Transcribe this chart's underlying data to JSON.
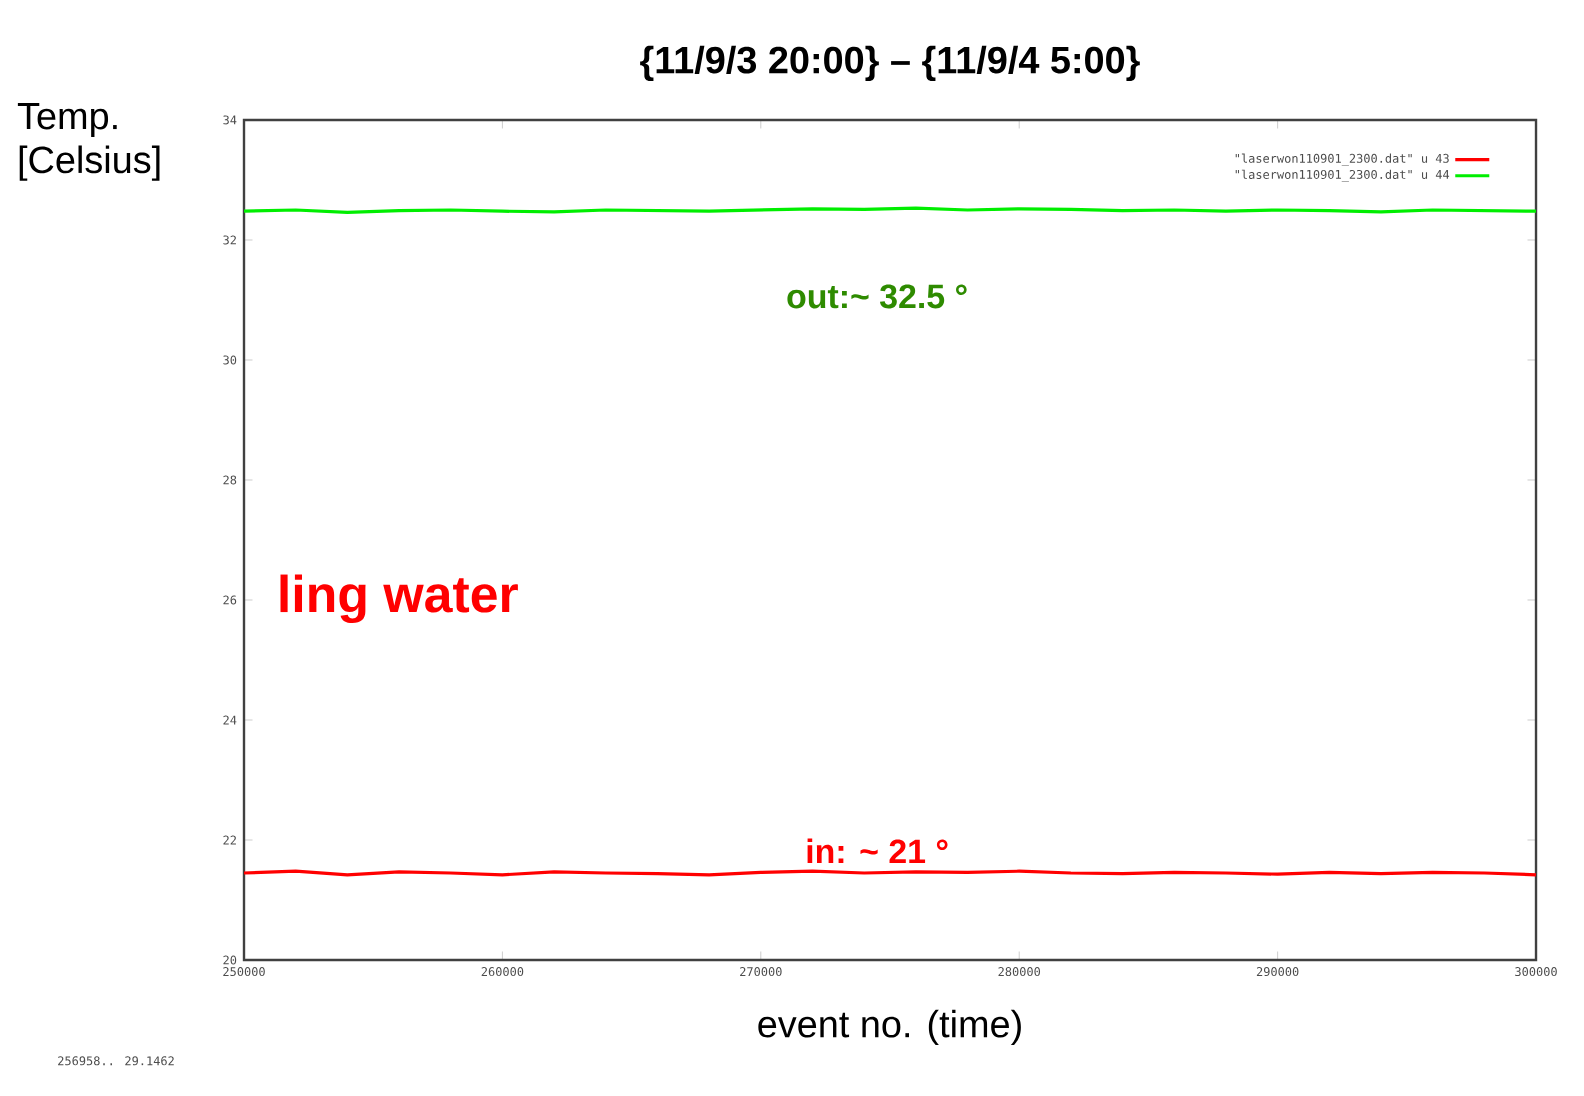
{
  "chart_data": {
    "type": "line",
    "title": "{11/9/3 20:00} – {11/9/4 5:00}",
    "xlabel": "event no.  (time)",
    "ylabel": "Temp. [Celsius]",
    "x": [
      250000,
      252000,
      254000,
      256000,
      258000,
      260000,
      262000,
      264000,
      266000,
      268000,
      270000,
      272000,
      274000,
      276000,
      278000,
      280000,
      282000,
      284000,
      286000,
      288000,
      290000,
      292000,
      294000,
      296000,
      298000,
      300000
    ],
    "series": [
      {
        "name": "\"laserwon110901_2300.dat\" u 43",
        "color": "#ff0000",
        "values": [
          21.45,
          21.48,
          21.42,
          21.47,
          21.45,
          21.42,
          21.47,
          21.45,
          21.44,
          21.42,
          21.46,
          21.48,
          21.45,
          21.47,
          21.46,
          21.48,
          21.45,
          21.44,
          21.46,
          21.45,
          21.43,
          21.46,
          21.44,
          21.46,
          21.45,
          21.42
        ]
      },
      {
        "name": "\"laserwon110901_2300.dat\" u 44",
        "color": "#00ee00",
        "values": [
          32.48,
          32.5,
          32.46,
          32.49,
          32.5,
          32.48,
          32.47,
          32.5,
          32.49,
          32.48,
          32.5,
          32.52,
          32.51,
          32.53,
          32.5,
          32.52,
          32.51,
          32.49,
          32.5,
          32.48,
          32.5,
          32.49,
          32.47,
          32.5,
          32.49,
          32.48
        ]
      }
    ],
    "xlim": [
      250000,
      300000
    ],
    "xticks": [
      250000,
      260000,
      270000,
      280000,
      290000,
      300000
    ],
    "ylim": [
      20,
      34
    ],
    "yticks": [
      20,
      22,
      24,
      26,
      28,
      30,
      32,
      34
    ],
    "legend": "top right",
    "marker": "none",
    "line_style": "solid",
    "grid": false,
    "annotations": [
      "out:~ 32.5 °",
      "in: ~ 21 °",
      "ling water",
      "256958..  29.1462"
    ]
  }
}
